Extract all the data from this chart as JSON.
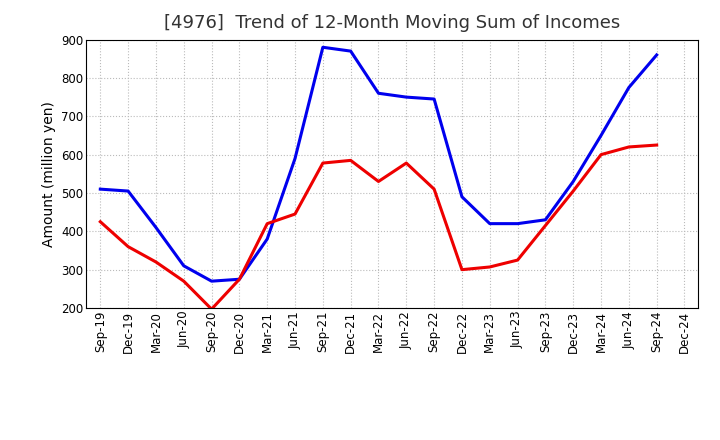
{
  "title": "[4976]  Trend of 12-Month Moving Sum of Incomes",
  "ylabel": "Amount (million yen)",
  "background_color": "#ffffff",
  "plot_background_color": "#ffffff",
  "grid_color": "#bbbbbb",
  "x_labels": [
    "Sep-19",
    "Dec-19",
    "Mar-20",
    "Jun-20",
    "Sep-20",
    "Dec-20",
    "Mar-21",
    "Jun-21",
    "Sep-21",
    "Dec-21",
    "Mar-22",
    "Jun-22",
    "Sep-22",
    "Dec-22",
    "Mar-23",
    "Jun-23",
    "Sep-23",
    "Dec-23",
    "Mar-24",
    "Jun-24",
    "Sep-24",
    "Dec-24"
  ],
  "ordinary_income": [
    510,
    505,
    410,
    310,
    270,
    275,
    380,
    590,
    880,
    870,
    760,
    750,
    745,
    490,
    420,
    420,
    430,
    530,
    650,
    775,
    860,
    null
  ],
  "net_income": [
    425,
    360,
    320,
    270,
    197,
    275,
    420,
    445,
    578,
    585,
    530,
    578,
    510,
    300,
    307,
    325,
    415,
    505,
    600,
    620,
    625,
    null
  ],
  "ylim": [
    200,
    900
  ],
  "yticks": [
    200,
    300,
    400,
    500,
    600,
    700,
    800,
    900
  ],
  "ordinary_color": "#0000ee",
  "net_color": "#ee0000",
  "line_width": 2.2,
  "title_fontsize": 13,
  "label_fontsize": 10,
  "tick_fontsize": 8.5,
  "legend_fontsize": 10
}
